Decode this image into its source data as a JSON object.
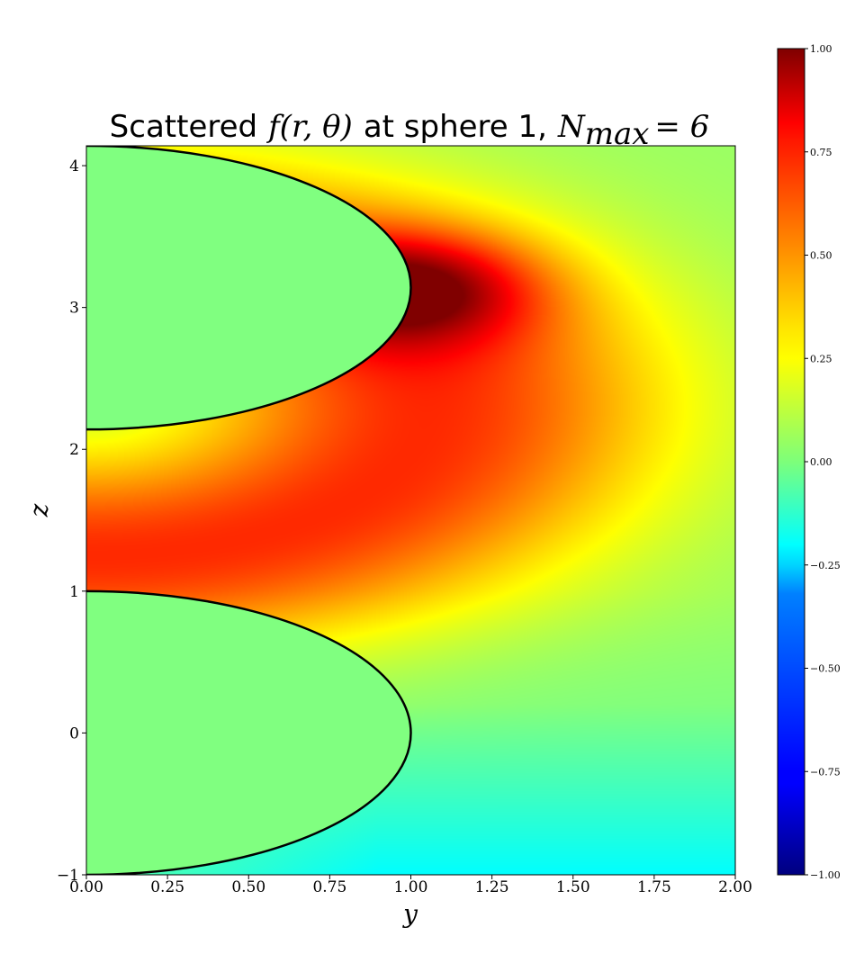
{
  "chart_data": {
    "type": "heatmap",
    "title_text": "Scattered",
    "title_math_func": "f(r, θ)",
    "title_mid": "at sphere 1,",
    "title_math_n": "N",
    "title_math_sub": "max",
    "title_math_eq": "= 6",
    "xlabel": "y",
    "ylabel": "z",
    "xlim": [
      0.0,
      2.0
    ],
    "ylim": [
      -1.0,
      4.14
    ],
    "xticks": [
      "0.00",
      "0.25",
      "0.50",
      "0.75",
      "1.00",
      "1.25",
      "1.50",
      "1.75",
      "2.00"
    ],
    "yticks": [
      "−1",
      "0",
      "1",
      "2",
      "3",
      "4"
    ],
    "ytick_values": [
      -1,
      0,
      1,
      2,
      3,
      4
    ],
    "colormap": "jet",
    "clim": [
      -1.0,
      1.0
    ],
    "colorbar_ticks": [
      "−1.00",
      "−0.75",
      "−0.50",
      "−0.25",
      "0.00",
      "0.25",
      "0.50",
      "0.75",
      "1.00"
    ],
    "colorbar_tick_values": [
      -1.0,
      -0.75,
      -0.5,
      -0.25,
      0.0,
      0.25,
      0.5,
      0.75,
      1.0
    ],
    "spheres": [
      {
        "center_z": 0.0,
        "radius": 1.0
      },
      {
        "center_z": 3.14,
        "radius": 1.0
      }
    ],
    "inside_sphere_value": 0.0,
    "peak_value": 1.0,
    "peak_location": {
      "y": 1.0,
      "z": 3.14
    }
  }
}
